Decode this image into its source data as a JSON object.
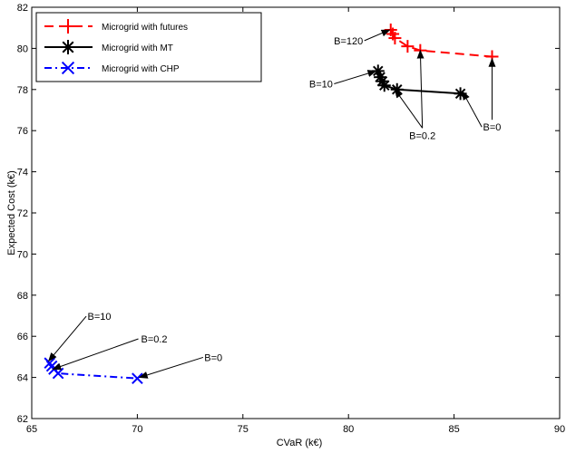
{
  "chart_data": {
    "type": "line",
    "xlabel": "CVaR (k€)",
    "ylabel": "Expected Cost (k€)",
    "xlim": [
      65,
      90
    ],
    "ylim": [
      62,
      82
    ],
    "xticks": [
      65,
      70,
      75,
      80,
      85,
      90
    ],
    "yticks": [
      62,
      64,
      66,
      68,
      70,
      72,
      74,
      76,
      78,
      80,
      82
    ],
    "grid": false,
    "legend_position": "top-left",
    "series": [
      {
        "name": "Microgrid with futures",
        "color": "#ff0000",
        "line_style": "dashed",
        "marker": "plus",
        "x": [
          82.0,
          82.1,
          82.2,
          82.8,
          83.4,
          86.8
        ],
        "y": [
          80.9,
          80.7,
          80.5,
          80.1,
          79.9,
          79.6
        ]
      },
      {
        "name": "Microgrid with MT",
        "color": "#000000",
        "line_style": "solid",
        "marker": "asterisk",
        "x": [
          81.4,
          81.5,
          81.6,
          81.7,
          82.3,
          85.3
        ],
        "y": [
          78.9,
          78.6,
          78.4,
          78.2,
          78.0,
          77.8
        ]
      },
      {
        "name": "Microgrid with CHP",
        "color": "#0000ff",
        "line_style": "dashdot",
        "marker": "x",
        "x": [
          65.85,
          65.95,
          66.05,
          66.25,
          70.0
        ],
        "y": [
          64.7,
          64.55,
          64.4,
          64.2,
          63.95
        ]
      }
    ],
    "annotations": [
      {
        "text": "B=120",
        "text_x": 80.0,
        "text_y": 80.2,
        "arrows": [
          [
            81.95,
            80.9
          ]
        ]
      },
      {
        "text": "B=10",
        "text_x": 78.7,
        "text_y": 78.1,
        "arrows": [
          [
            81.3,
            78.9
          ]
        ]
      },
      {
        "text": "B=0.2",
        "text_x": 83.5,
        "text_y": 75.6,
        "arrows": [
          [
            82.2,
            78.0
          ],
          [
            83.4,
            79.9
          ]
        ]
      },
      {
        "text": "B=0",
        "text_x": 86.8,
        "text_y": 76.0,
        "arrows": [
          [
            85.4,
            77.9
          ],
          [
            86.8,
            79.5
          ]
        ]
      },
      {
        "text": "B=10",
        "text_x": 68.2,
        "text_y": 66.8,
        "arrows": [
          [
            65.8,
            64.8
          ]
        ]
      },
      {
        "text": "B=0.2",
        "text_x": 70.8,
        "text_y": 65.7,
        "arrows": [
          [
            66.0,
            64.4
          ]
        ]
      },
      {
        "text": "B=0",
        "text_x": 73.6,
        "text_y": 64.8,
        "arrows": [
          [
            70.1,
            64.0
          ]
        ]
      }
    ]
  }
}
